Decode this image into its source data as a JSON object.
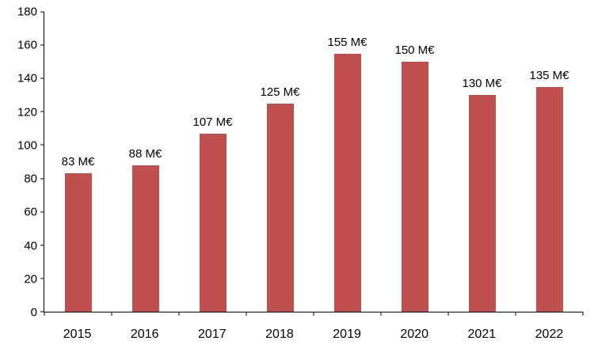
{
  "chart_data": {
    "type": "bar",
    "title": "",
    "xlabel": "",
    "ylabel": "",
    "categories": [
      "2015",
      "2016",
      "2017",
      "2018",
      "2019",
      "2020",
      "2021",
      "2022"
    ],
    "values": [
      83,
      88,
      107,
      125,
      155,
      150,
      130,
      135
    ],
    "data_labels": [
      "83 M€",
      "88 M€",
      "107 M€",
      "125 M€",
      "155 M€",
      "150 M€",
      "130 M€",
      "135 M€"
    ],
    "ylim": [
      0,
      180
    ],
    "y_ticks": [
      0,
      20,
      40,
      60,
      80,
      100,
      120,
      140,
      160,
      180
    ],
    "bar_color": "#C0504D",
    "axis_color": "#000000",
    "text_color": "#000000",
    "grid": false,
    "legend": false
  }
}
